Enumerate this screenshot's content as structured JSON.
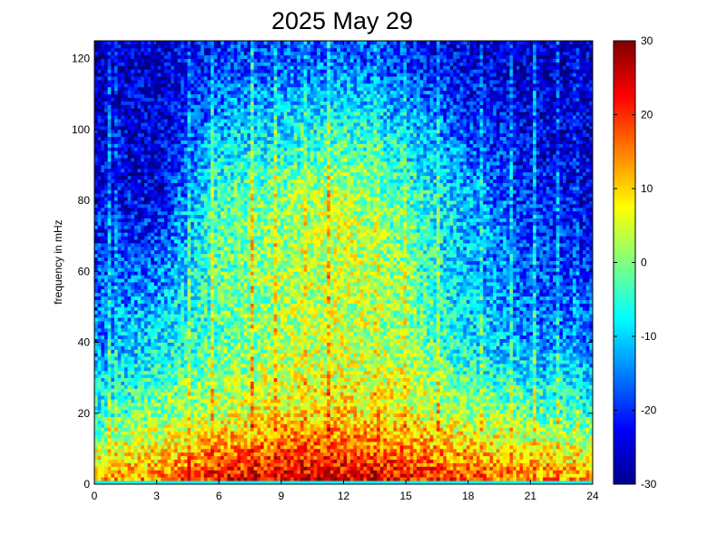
{
  "chart_data": {
    "type": "heatmap",
    "title": "2025 May 29",
    "xlabel": "",
    "ylabel": "frequency in mHz",
    "xlim": [
      0,
      24
    ],
    "ylim": [
      0,
      125
    ],
    "xticks": [
      0,
      3,
      6,
      9,
      12,
      15,
      18,
      21,
      24
    ],
    "xtick_labels": [
      "0",
      "3",
      "6",
      "9",
      "12",
      "15",
      "18",
      "21",
      "24"
    ],
    "yticks": [
      0,
      20,
      40,
      60,
      80,
      100,
      120
    ],
    "ytick_labels": [
      "0",
      "20",
      "40",
      "60",
      "80",
      "100",
      "120"
    ],
    "colorbar": {
      "colormap": "jet",
      "clim": [
        -30,
        30
      ],
      "ticks": [
        -30,
        -20,
        -10,
        0,
        10,
        20,
        30
      ],
      "tick_labels": [
        "-30",
        "-20",
        "-10",
        "0",
        "10",
        "20",
        "30"
      ]
    },
    "grid": false,
    "grid_summary": {
      "description_of_values": "Power level (colorbar units) by hour of day (x) and frequency in mHz (y)",
      "hours": [
        0,
        3,
        6,
        9,
        12,
        15,
        18,
        21,
        24
      ],
      "frequencies_mHz": [
        2,
        20,
        40,
        60,
        80,
        100,
        120
      ],
      "values": [
        [
          12,
          14,
          22,
          24,
          24,
          22,
          18,
          15,
          12
        ],
        [
          -6,
          0,
          4,
          8,
          9,
          7,
          2,
          -2,
          -4
        ],
        [
          -15,
          -8,
          -2,
          2,
          4,
          1,
          -8,
          -14,
          -16
        ],
        [
          -18,
          -16,
          -2,
          2,
          5,
          0,
          -12,
          -18,
          -20
        ],
        [
          -22,
          -24,
          -3,
          0,
          4,
          -3,
          -12,
          -20,
          -24
        ],
        [
          -24,
          -26,
          -12,
          -8,
          -4,
          -10,
          -18,
          -24,
          -26
        ],
        [
          -26,
          -26,
          -20,
          -18,
          -16,
          -20,
          -24,
          -26,
          -26
        ]
      ]
    },
    "vertical_streaks_hours": [
      0.7,
      1.1,
      4.6,
      5.7,
      7.6,
      8.7,
      10.1,
      11.3,
      13.6,
      14.9,
      16.6,
      18.6,
      20.1,
      21.2,
      22.3,
      23.2
    ],
    "colors": {
      "frame": "#000000",
      "background": "#ffffff"
    }
  }
}
